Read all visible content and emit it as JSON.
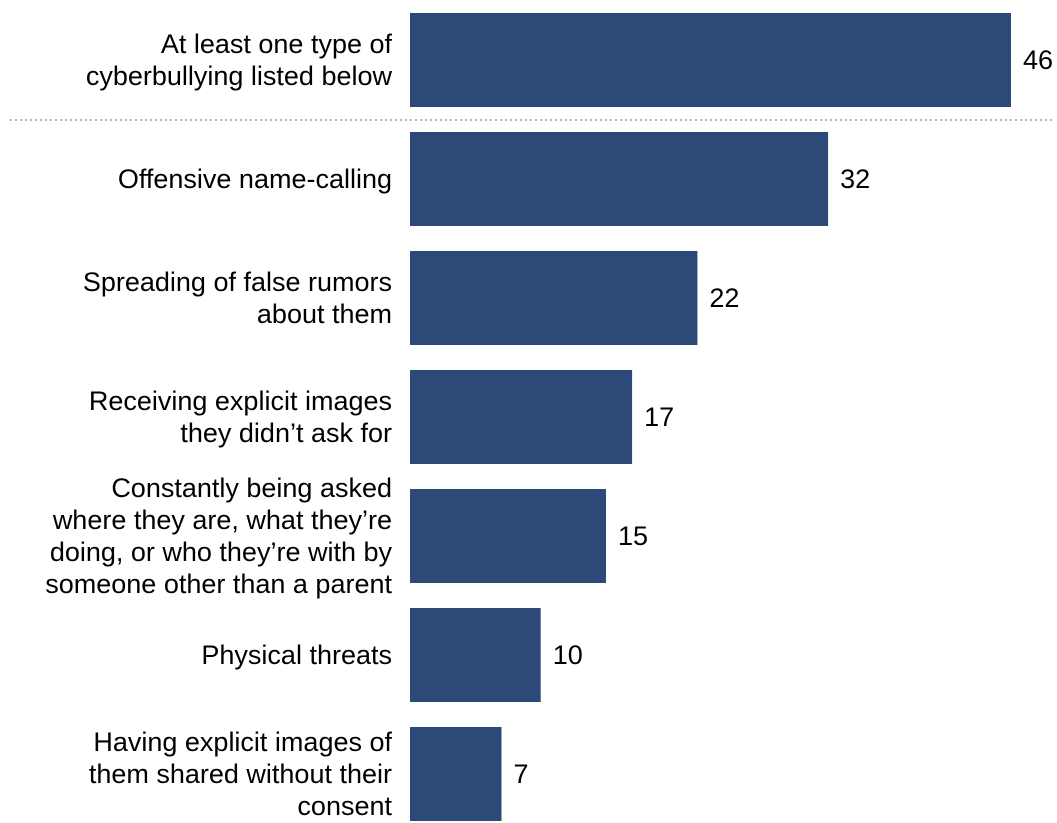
{
  "chart_data": {
    "type": "bar",
    "orientation": "horizontal",
    "categories": [
      [
        "At least one type of",
        "cyberbullying listed below"
      ],
      [
        "Offensive name-calling"
      ],
      [
        "Spreading of false rumors",
        "about them"
      ],
      [
        "Receiving explicit images",
        "they didn’t ask for"
      ],
      [
        "Constantly being asked",
        "where they are, what they’re",
        "doing, or who they’re with by",
        "someone other than a parent"
      ],
      [
        "Physical threats"
      ],
      [
        "Having explicit images of",
        "them shared without their",
        "consent"
      ]
    ],
    "values": [
      46,
      32,
      22,
      17,
      15,
      10,
      7
    ],
    "value_labels": [
      "46",
      "32",
      "22",
      "17",
      "15",
      "10",
      "7"
    ],
    "separator_after_index": 0,
    "xlim": [
      0,
      46
    ],
    "grid": false,
    "legend": "none",
    "colors": {
      "bar": "#2c4977",
      "separator": "#b3b3b3",
      "text": "#000000"
    }
  }
}
